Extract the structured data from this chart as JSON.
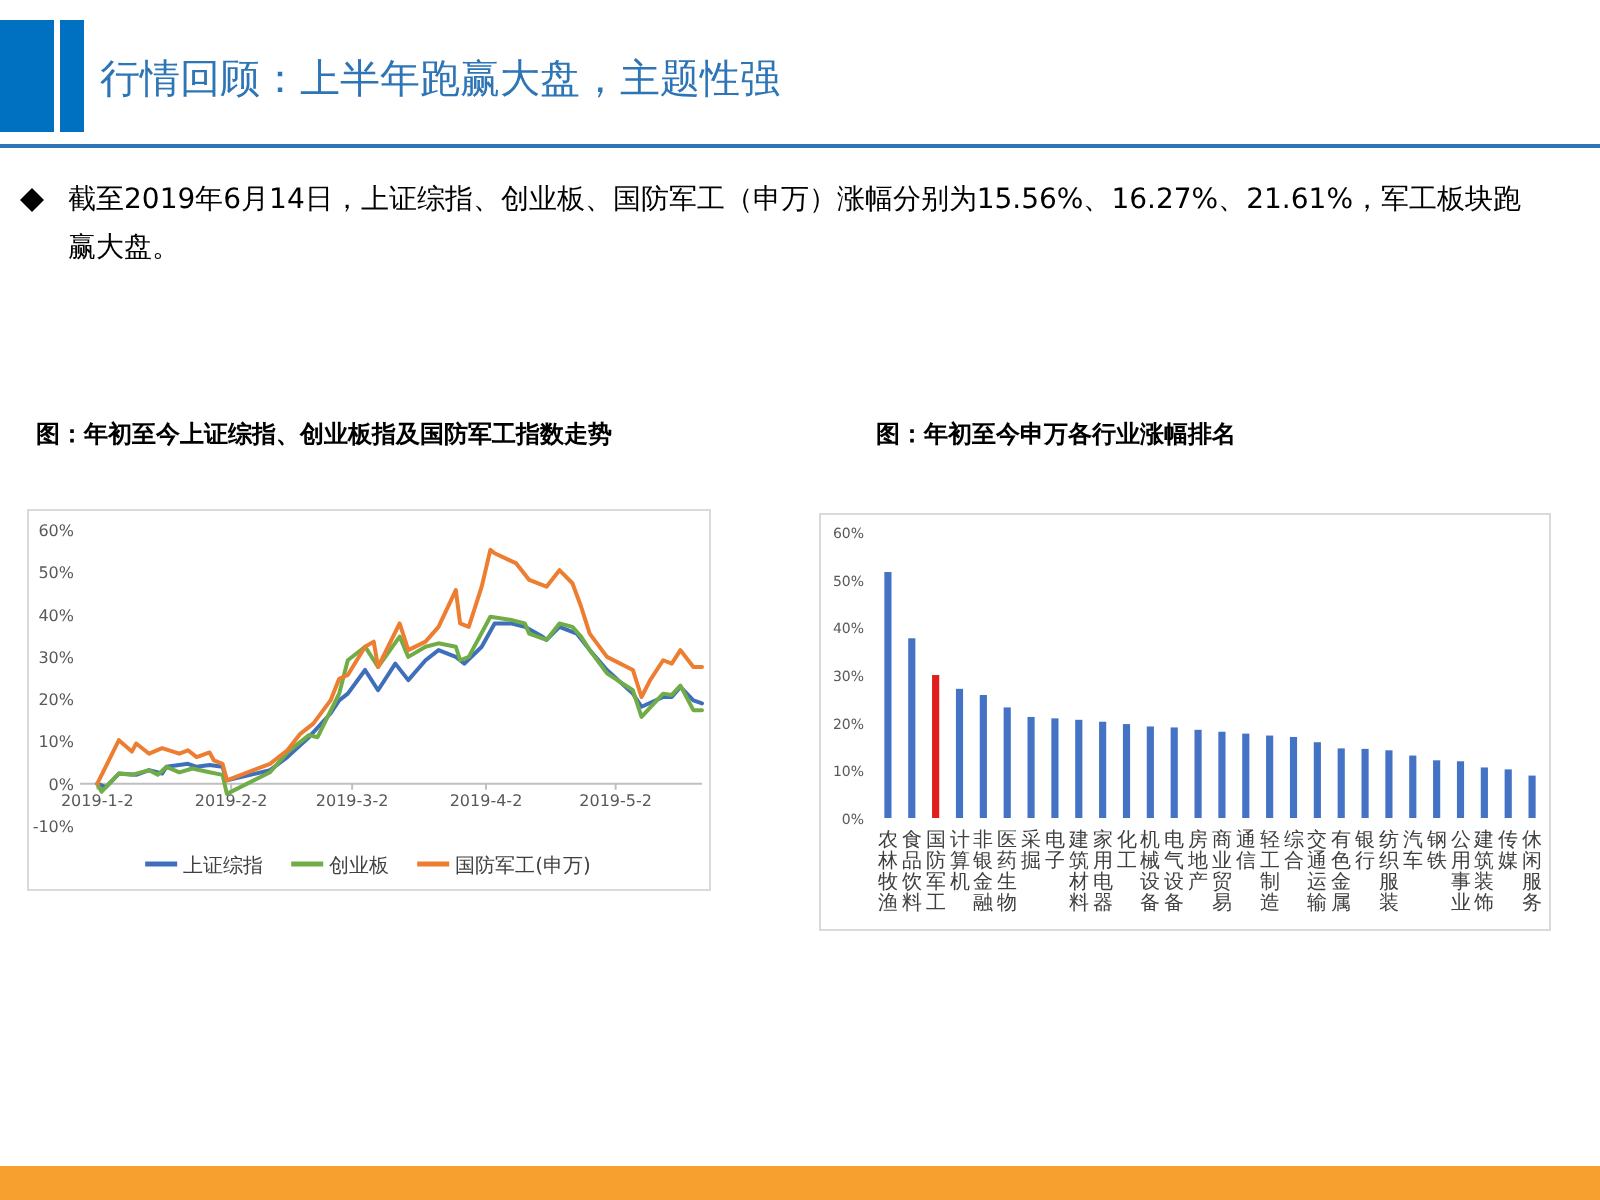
{
  "chart_data": [
    {
      "type": "other",
      "title": "行情回顾：上半年跑赢大盘，主题性强",
      "annotations": [
        "截至2019年6月14日，上证综指、创业板、国防军工（申万）涨幅分别为15.56%、16.27%、21.61%，军工板块跑赢大盘。"
      ]
    },
    {
      "type": "line",
      "title": "图：年初至今上证综指、创业板指及国防军工指数走势",
      "legend": "bottom",
      "xlim": [
        "2018-12-29",
        "2019-05-22"
      ],
      "ylim": [
        -10,
        60
      ],
      "xticks": [
        {
          "value": "2019-01-02",
          "label": "2019-1-2"
        },
        {
          "value": "2019-02-02",
          "label": "2019-2-2"
        },
        {
          "value": "2019-03-02",
          "label": "2019-3-2"
        },
        {
          "value": "2019-04-02",
          "label": "2019-4-2"
        },
        {
          "value": "2019-05-02",
          "label": "2019-5-2"
        }
      ],
      "yticks": [
        {
          "value": -10,
          "label": "-10%"
        },
        {
          "value": 0,
          "label": "0%"
        },
        {
          "value": 10,
          "label": "10%"
        },
        {
          "value": 20,
          "label": "20%"
        },
        {
          "value": 30,
          "label": "30%"
        },
        {
          "value": 40,
          "label": "40%"
        },
        {
          "value": 50,
          "label": "50%"
        },
        {
          "value": 60,
          "label": "60%"
        }
      ],
      "series": [
        {
          "name": "上证综指",
          "color": "#3f6fba",
          "x": [
            "2019-01-02",
            "2019-01-04",
            "2019-01-07",
            "2019-01-11",
            "2019-01-14",
            "2019-01-17",
            "2019-01-18",
            "2019-01-23",
            "2019-01-25",
            "2019-01-28",
            "2019-01-31",
            "2019-02-01",
            "2019-02-11",
            "2019-02-15",
            "2019-02-20",
            "2019-02-25",
            "2019-02-27",
            "2019-03-01",
            "2019-03-05",
            "2019-03-08",
            "2019-03-12",
            "2019-03-15",
            "2019-03-19",
            "2019-03-22",
            "2019-03-26",
            "2019-03-28",
            "2019-04-01",
            "2019-04-04",
            "2019-04-08",
            "2019-04-11",
            "2019-04-15",
            "2019-04-16",
            "2019-04-19",
            "2019-04-23",
            "2019-04-26",
            "2019-04-30",
            "2019-05-06",
            "2019-05-08",
            "2019-05-13",
            "2019-05-15",
            "2019-05-17",
            "2019-05-20",
            "2019-05-22"
          ],
          "values": [
            0,
            -0.8,
            2.4,
            2.1,
            3.2,
            2.4,
            4,
            4.7,
            4,
            4.4,
            4,
            0.8,
            3.2,
            6.3,
            11,
            16.6,
            19.7,
            21.3,
            26.9,
            22.1,
            28.4,
            24.5,
            29.2,
            31.6,
            30,
            28.4,
            32.4,
            37.9,
            37.9,
            37.1,
            34.8,
            34,
            37.1,
            35.5,
            31.6,
            26.9,
            21.3,
            18.2,
            20.5,
            20.5,
            22.9,
            19.7,
            19
          ]
        },
        {
          "name": "创业板",
          "color": "#70ad47",
          "x": [
            "2019-01-02",
            "2019-01-03",
            "2019-01-07",
            "2019-01-10",
            "2019-01-14",
            "2019-01-16",
            "2019-01-18",
            "2019-01-21",
            "2019-01-24",
            "2019-01-28",
            "2019-01-31",
            "2019-02-01",
            "2019-02-11",
            "2019-02-15",
            "2019-02-20",
            "2019-02-22",
            "2019-02-27",
            "2019-03-01",
            "2019-03-05",
            "2019-03-08",
            "2019-03-13",
            "2019-03-15",
            "2019-03-19",
            "2019-03-22",
            "2019-03-26",
            "2019-03-27",
            "2019-03-29",
            "2019-04-03",
            "2019-04-08",
            "2019-04-11",
            "2019-04-12",
            "2019-04-16",
            "2019-04-19",
            "2019-04-22",
            "2019-04-24",
            "2019-04-26",
            "2019-04-30",
            "2019-05-06",
            "2019-05-08",
            "2019-05-13",
            "2019-05-15",
            "2019-05-17",
            "2019-05-20",
            "2019-05-22"
          ],
          "values": [
            0,
            -1.9,
            2.4,
            2.1,
            3.2,
            2.1,
            4,
            2.7,
            3.6,
            2.7,
            2.1,
            -2.4,
            2.7,
            7.4,
            11.5,
            11,
            21.3,
            29.2,
            32.4,
            27.6,
            34.8,
            30,
            32.4,
            33.2,
            32.4,
            29.2,
            30,
            39.5,
            38.7,
            37.9,
            35.5,
            34,
            37.9,
            37.1,
            34.8,
            31.6,
            26.1,
            22.1,
            15.8,
            21.3,
            21,
            23.2,
            17.4,
            17.4
          ]
        },
        {
          "name": "国防军工(申万)",
          "color": "#ed7d31",
          "x": [
            "2019-01-02",
            "2019-01-07",
            "2019-01-10",
            "2019-01-11",
            "2019-01-14",
            "2019-01-17",
            "2019-01-21",
            "2019-01-23",
            "2019-01-25",
            "2019-01-28",
            "2019-01-29",
            "2019-01-31",
            "2019-02-01",
            "2019-02-11",
            "2019-02-15",
            "2019-02-18",
            "2019-02-21",
            "2019-02-25",
            "2019-02-27",
            "2019-03-01",
            "2019-03-05",
            "2019-03-07",
            "2019-03-08",
            "2019-03-13",
            "2019-03-15",
            "2019-03-19",
            "2019-03-22",
            "2019-03-26",
            "2019-03-27",
            "2019-03-29",
            "2019-04-01",
            "2019-04-03",
            "2019-04-04",
            "2019-04-09",
            "2019-04-12",
            "2019-04-16",
            "2019-04-19",
            "2019-04-22",
            "2019-04-24",
            "2019-04-26",
            "2019-04-30",
            "2019-05-06",
            "2019-05-07",
            "2019-05-08",
            "2019-05-10",
            "2019-05-13",
            "2019-05-15",
            "2019-05-17",
            "2019-05-20",
            "2019-05-22"
          ],
          "values": [
            0,
            10.3,
            7.6,
            9.5,
            7.1,
            8.4,
            7.1,
            7.9,
            6.3,
            7.4,
            5.5,
            4.7,
            0.8,
            4.7,
            7.9,
            11.8,
            14.2,
            19.7,
            24.8,
            25.7,
            32.4,
            33.6,
            27.6,
            37.9,
            31.6,
            33.6,
            37.1,
            45.8,
            37.9,
            37.1,
            46.6,
            55.3,
            54.5,
            52.1,
            48.2,
            46.6,
            50.5,
            47.4,
            41.9,
            35.5,
            30,
            26.9,
            23.7,
            20.5,
            24.5,
            29.2,
            28.4,
            31.6,
            27.6,
            27.6
          ]
        }
      ]
    },
    {
      "type": "bar",
      "title": "图：年初至今申万各行业涨幅排名",
      "ylim": [
        0,
        60
      ],
      "yticks": [
        {
          "value": 0,
          "label": "0%"
        },
        {
          "value": 10,
          "label": "10%"
        },
        {
          "value": 20,
          "label": "20%"
        },
        {
          "value": 30,
          "label": "30%"
        },
        {
          "value": 40,
          "label": "40%"
        },
        {
          "value": 50,
          "label": "50%"
        },
        {
          "value": 60,
          "label": "60%"
        }
      ],
      "categories": [
        "农林牧渔",
        "食品饮料",
        "国防军工",
        "计算机",
        "非银金融",
        "医药生物",
        "采掘",
        "电子",
        "建筑材料",
        "家用电器",
        "化工",
        "机械设备",
        "电气设备",
        "房地产",
        "商业贸易",
        "通信",
        "轻工制造",
        "综合",
        "交通运输",
        "有色金属",
        "银行",
        "纺织服装",
        "汽车",
        "钢铁",
        "公用事业",
        "建筑装饰",
        "传媒",
        "休闲服务"
      ],
      "values": [
        51.6,
        37.7,
        30,
        27.1,
        25.8,
        23.2,
        21.2,
        20.9,
        20.6,
        20.2,
        19.7,
        19.2,
        19,
        18.5,
        18.1,
        17.7,
        17.3,
        17,
        15.9,
        14.6,
        14.5,
        14.2,
        13.1,
        12.1,
        11.9,
        10.6,
        10.2,
        8.9
      ],
      "colors": [
        "#4472c4",
        "#4472c4",
        "#e01e1e",
        "#4472c4",
        "#4472c4",
        "#4472c4",
        "#4472c4",
        "#4472c4",
        "#4472c4",
        "#4472c4",
        "#4472c4",
        "#4472c4",
        "#4472c4",
        "#4472c4",
        "#4472c4",
        "#4472c4",
        "#4472c4",
        "#4472c4",
        "#4472c4",
        "#4472c4",
        "#4472c4",
        "#4472c4",
        "#4472c4",
        "#4472c4",
        "#4472c4",
        "#4472c4",
        "#4472c4",
        "#4472c4"
      ]
    }
  ]
}
